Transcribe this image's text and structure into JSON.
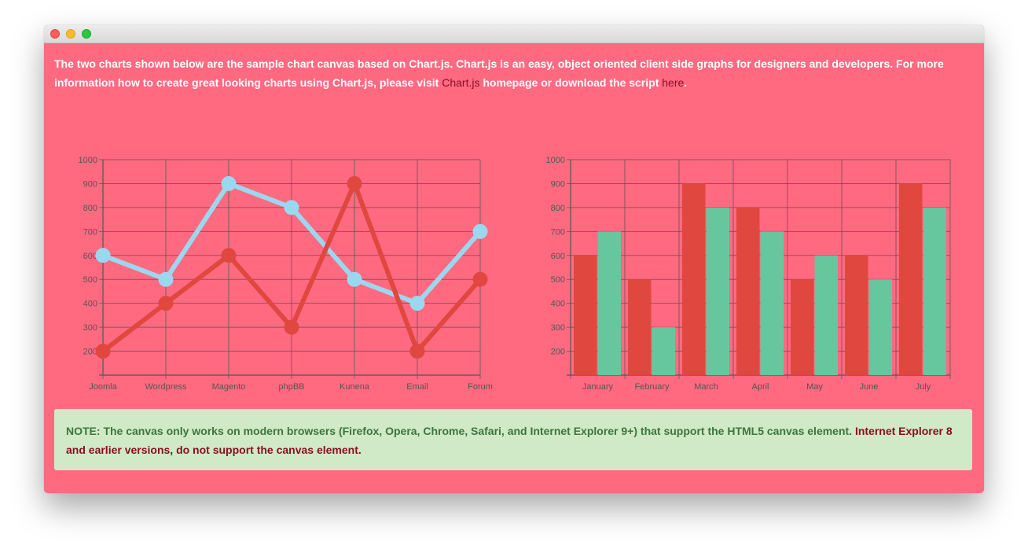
{
  "window": {
    "controls": [
      "close",
      "minimize",
      "zoom"
    ]
  },
  "intro": {
    "text_before": "The two charts shown below are the sample chart canvas based on Chart.js. Chart.js is an easy, object oriented client side graphs for designers and developers. For more information how to create great looking charts using Chart.js, please visit ",
    "link1": "Chart.js",
    "text_middle": " homepage or download the script ",
    "link2": "here",
    "text_after": "."
  },
  "note": {
    "text": "NOTE: The canvas only works on modern browsers (Firefox, Opera, Chrome, Safari, and Internet Explorer 9+) that support the HTML5 canvas element. ",
    "warning": "Internet Explorer 8 and earlier versions, do not support the canvas element."
  },
  "colors": {
    "background": "#ff6a80",
    "series_red": "#e0473f",
    "series_blue": "#9ad8ef",
    "series_green": "#66c69e",
    "grid": "#555555"
  },
  "chart_data": [
    {
      "type": "line",
      "categories": [
        "Joomla",
        "Wordpress",
        "Magento",
        "phpBB",
        "Kunena",
        "Email",
        "Forum"
      ],
      "series": [
        {
          "color": "#e0473f",
          "values": [
            200,
            400,
            600,
            300,
            900,
            200,
            500
          ]
        },
        {
          "color": "#9ad8ef",
          "values": [
            600,
            500,
            900,
            800,
            500,
            400,
            700
          ]
        }
      ],
      "yticks": [
        200,
        300,
        400,
        500,
        600,
        700,
        800,
        900,
        1000
      ],
      "ylim": [
        100,
        1000
      ],
      "grid": true
    },
    {
      "type": "bar",
      "categories": [
        "January",
        "February",
        "March",
        "April",
        "May",
        "June",
        "July"
      ],
      "series": [
        {
          "color": "#e0473f",
          "values": [
            600,
            500,
            900,
            800,
            500,
            600,
            900
          ]
        },
        {
          "color": "#66c69e",
          "values": [
            700,
            300,
            800,
            700,
            600,
            500,
            800
          ]
        }
      ],
      "yticks": [
        200,
        300,
        400,
        500,
        600,
        700,
        800,
        900,
        1000
      ],
      "ylim": [
        100,
        1000
      ],
      "grid": true
    }
  ]
}
